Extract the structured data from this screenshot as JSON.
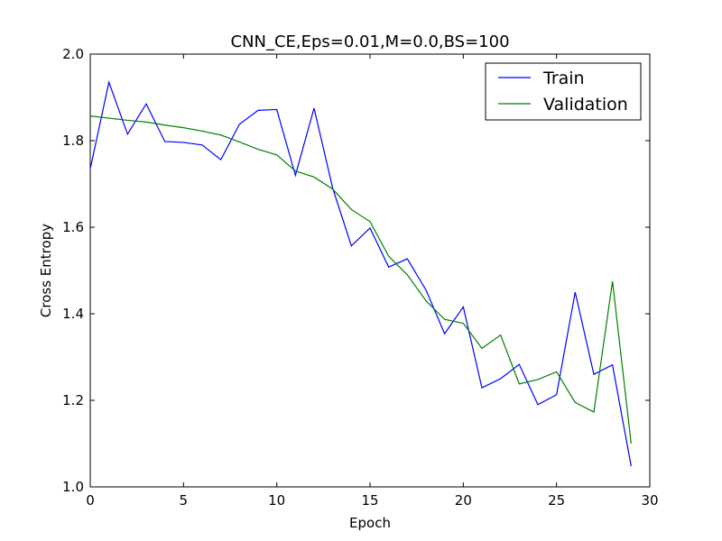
{
  "chart_data": {
    "type": "line",
    "title": "CNN_CE,Eps=0.01,M=0.0,BS=100",
    "xlabel": "Epoch",
    "ylabel": "Cross Entropy",
    "xlim": [
      0,
      30
    ],
    "ylim": [
      1.0,
      2.0
    ],
    "xticks": [
      0,
      5,
      10,
      15,
      20,
      25,
      30
    ],
    "yticks": [
      1.0,
      1.2,
      1.4,
      1.6,
      1.8,
      2.0
    ],
    "xtick_labels": [
      "0",
      "5",
      "10",
      "15",
      "20",
      "25",
      "30"
    ],
    "ytick_labels": [
      "1.0",
      "1.2",
      "1.4",
      "1.6",
      "1.8",
      "2.0"
    ],
    "grid": false,
    "legend_position": "top-right",
    "series": [
      {
        "name": "Train",
        "color": "#0000ff",
        "x": [
          0,
          1,
          2,
          3,
          4,
          5,
          6,
          7,
          8,
          9,
          10,
          11,
          12,
          13,
          14,
          15,
          16,
          17,
          18,
          19,
          20,
          21,
          22,
          23,
          24,
          25,
          26,
          27,
          28,
          29
        ],
        "y": [
          1.735,
          1.935,
          1.815,
          1.885,
          1.798,
          1.796,
          1.79,
          1.756,
          1.838,
          1.87,
          1.872,
          1.72,
          1.875,
          1.69,
          1.557,
          1.598,
          1.508,
          1.527,
          1.455,
          1.354,
          1.416,
          1.229,
          1.25,
          1.283,
          1.19,
          1.213,
          1.45,
          1.26,
          1.282,
          1.048
        ]
      },
      {
        "name": "Validation",
        "color": "#008000",
        "x": [
          0,
          1,
          2,
          3,
          4,
          5,
          6,
          7,
          8,
          9,
          10,
          11,
          12,
          13,
          14,
          15,
          16,
          17,
          18,
          19,
          20,
          21,
          22,
          23,
          24,
          25,
          26,
          27,
          28,
          29
        ],
        "y": [
          1.857,
          1.852,
          1.847,
          1.843,
          1.836,
          1.83,
          1.822,
          1.813,
          1.797,
          1.78,
          1.767,
          1.73,
          1.716,
          1.688,
          1.641,
          1.613,
          1.533,
          1.49,
          1.43,
          1.387,
          1.378,
          1.32,
          1.351,
          1.238,
          1.248,
          1.266,
          1.195,
          1.173,
          1.475,
          1.1
        ]
      }
    ]
  }
}
